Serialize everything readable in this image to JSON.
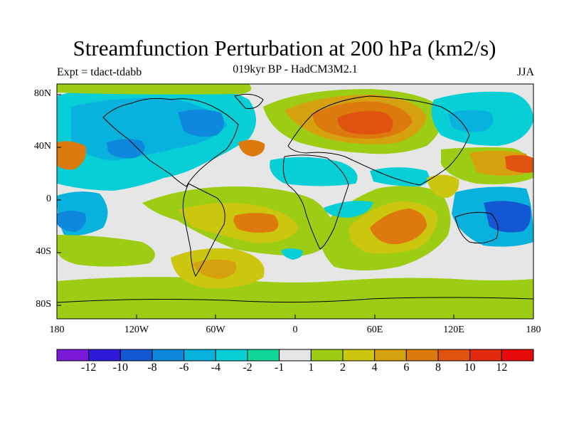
{
  "title": "Streamfunction Perturbation at 200 hPa (km2/s)",
  "subtitle": "019kyr BP - HadCM3M2.1",
  "experiment_label": "Expt = tdact-tdabb",
  "season": "JJA",
  "lat_ticks": [
    "80N",
    "40N",
    "0",
    "40S",
    "80S"
  ],
  "lon_ticks": [
    "180",
    "120W",
    "60W",
    "0",
    "60E",
    "120E",
    "180"
  ],
  "colorbar": {
    "labels": [
      "-12",
      "-10",
      "-8",
      "-6",
      "-4",
      "-2",
      "-1",
      "1",
      "2",
      "4",
      "6",
      "8",
      "10",
      "12"
    ],
    "colors": [
      "#7a1ad8",
      "#2f1adc",
      "#1457d2",
      "#0d88dc",
      "#09b2dc",
      "#08cfd6",
      "#0fd79a",
      "#e6e6e6",
      "#9ccd14",
      "#cdc60f",
      "#d6a10f",
      "#dd7a0e",
      "#e05210",
      "#e22a10",
      "#e60a0a"
    ]
  },
  "colors": {
    "neutral": "#e6e6e6",
    "coast": "#000000"
  }
}
